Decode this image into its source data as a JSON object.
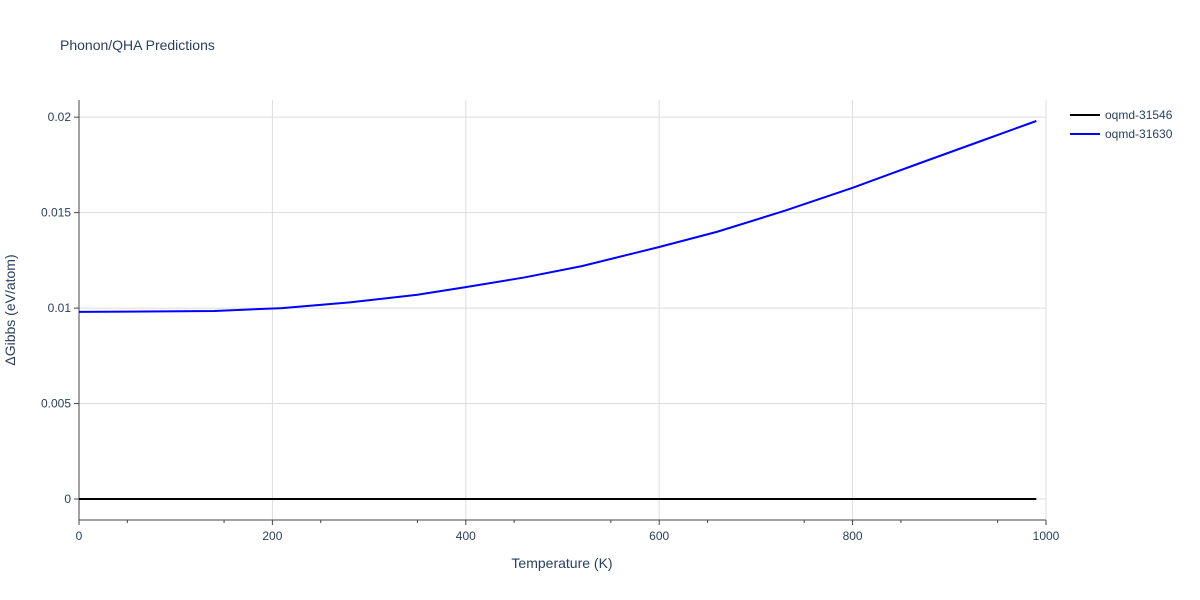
{
  "chart_data": {
    "type": "line",
    "title": "Phonon/QHA Predictions",
    "xlabel": "Temperature (K)",
    "ylabel": "ΔGibbs (eV/atom)",
    "xlim": [
      0,
      1000
    ],
    "ylim": [
      -0.0011,
      0.0209
    ],
    "xticks": [
      0,
      200,
      400,
      600,
      800,
      1000
    ],
    "xtick_labels": [
      "0",
      "200",
      "400",
      "600",
      "800",
      "1000"
    ],
    "yticks": [
      0,
      0.005,
      0.01,
      0.015,
      0.02
    ],
    "ytick_labels": [
      "0",
      "0.005",
      "0.01",
      "0.015",
      "0.02"
    ],
    "grid": true,
    "legend_position": "top-right",
    "series": [
      {
        "name": "oqmd-31546",
        "color": "#000000",
        "x": [
          0,
          990
        ],
        "y": [
          0,
          0
        ]
      },
      {
        "name": "oqmd-31630",
        "color": "#0000ff",
        "x": [
          0,
          70,
          140,
          210,
          280,
          350,
          400,
          460,
          520,
          600,
          660,
          730,
          800,
          870,
          930,
          990
        ],
        "y": [
          0.0098,
          0.00982,
          0.00985,
          0.01,
          0.0103,
          0.0107,
          0.0111,
          0.0116,
          0.0122,
          0.0132,
          0.014,
          0.0151,
          0.0163,
          0.0176,
          0.0187,
          0.0198
        ]
      }
    ]
  }
}
